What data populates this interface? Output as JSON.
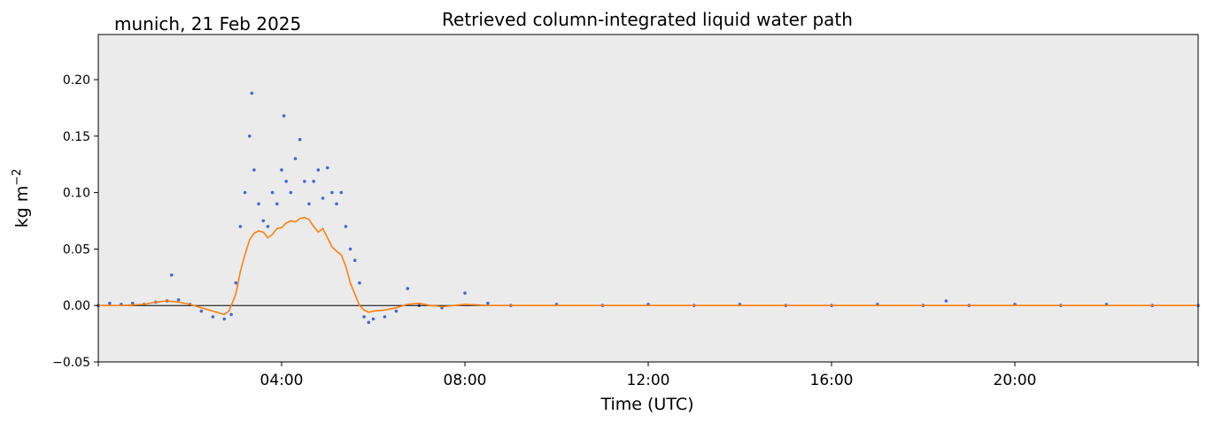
{
  "chart_data": {
    "type": "scatter",
    "location_date": "munich, 21 Feb 2025",
    "title": "Retrieved column-integrated liquid water path",
    "xlabel": "Time (UTC)",
    "ylabel": "kg m",
    "ylabel_superscript": "−2",
    "x_unit": "hours UTC",
    "xlim": [
      0,
      24
    ],
    "ylim": [
      -0.05,
      0.24
    ],
    "x_ticks": [
      {
        "value": 4,
        "label": "04:00"
      },
      {
        "value": 8,
        "label": "08:00"
      },
      {
        "value": 12,
        "label": "12:00"
      },
      {
        "value": 16,
        "label": "16:00"
      },
      {
        "value": 20,
        "label": "20:00"
      }
    ],
    "y_ticks": [
      {
        "value": -0.05,
        "label": "−0.05"
      },
      {
        "value": 0.0,
        "label": "0.00"
      },
      {
        "value": 0.05,
        "label": "0.05"
      },
      {
        "value": 0.1,
        "label": "0.10"
      },
      {
        "value": 0.15,
        "label": "0.15"
      },
      {
        "value": 0.2,
        "label": "0.20"
      }
    ],
    "grid": false,
    "background_color": "#ebebeb",
    "zero_line": 0,
    "series": [
      {
        "kind": "scatter",
        "color": "#4169e1",
        "x": [
          0.0,
          0.25,
          0.5,
          0.75,
          1.0,
          1.25,
          1.5,
          1.6,
          1.75,
          2.0,
          2.25,
          2.5,
          2.75,
          2.9,
          3.0,
          3.1,
          3.2,
          3.3,
          3.35,
          3.4,
          3.5,
          3.6,
          3.7,
          3.8,
          3.9,
          4.0,
          4.05,
          4.1,
          4.2,
          4.3,
          4.4,
          4.5,
          4.6,
          4.7,
          4.8,
          4.9,
          5.0,
          5.1,
          5.2,
          5.3,
          5.4,
          5.5,
          5.6,
          5.7,
          5.8,
          5.9,
          6.0,
          6.25,
          6.5,
          6.75,
          7.0,
          7.5,
          8.0,
          8.5,
          9.0,
          10.0,
          11.0,
          12.0,
          13.0,
          14.0,
          15.0,
          16.0,
          17.0,
          18.0,
          18.5,
          19.0,
          20.0,
          21.0,
          22.0,
          23.0,
          24.0
        ],
        "y": [
          0.0,
          0.002,
          0.001,
          0.002,
          0.001,
          0.003,
          0.004,
          0.027,
          0.005,
          0.001,
          -0.005,
          -0.01,
          -0.012,
          -0.008,
          0.02,
          0.07,
          0.1,
          0.15,
          0.188,
          0.12,
          0.09,
          0.075,
          0.07,
          0.1,
          0.09,
          0.12,
          0.168,
          0.11,
          0.1,
          0.13,
          0.147,
          0.11,
          0.09,
          0.11,
          0.12,
          0.095,
          0.122,
          0.1,
          0.09,
          0.1,
          0.07,
          0.05,
          0.04,
          0.02,
          -0.01,
          -0.015,
          -0.012,
          -0.01,
          -0.005,
          0.015,
          0.0,
          -0.002,
          0.011,
          0.002,
          0.0,
          0.001,
          0.0,
          0.001,
          0.0,
          0.001,
          0.0,
          0.0,
          0.001,
          0.0,
          0.004,
          0.0,
          0.001,
          0.0,
          0.001,
          0.0,
          0.0
        ]
      },
      {
        "kind": "line",
        "color": "#ff7f0e",
        "x": [
          0.0,
          0.5,
          1.0,
          1.25,
          1.5,
          1.75,
          2.0,
          2.25,
          2.5,
          2.75,
          2.85,
          3.0,
          3.1,
          3.2,
          3.3,
          3.4,
          3.5,
          3.6,
          3.7,
          3.8,
          3.9,
          4.0,
          4.1,
          4.2,
          4.3,
          4.4,
          4.5,
          4.6,
          4.7,
          4.8,
          4.9,
          5.0,
          5.1,
          5.2,
          5.3,
          5.4,
          5.5,
          5.6,
          5.7,
          5.8,
          5.9,
          6.0,
          6.25,
          6.5,
          6.75,
          7.0,
          7.25,
          7.5,
          7.75,
          8.0,
          8.5,
          9.0,
          12.0,
          16.0,
          20.0,
          24.0
        ],
        "y": [
          0.0,
          0.0,
          0.001,
          0.003,
          0.004,
          0.003,
          0.001,
          -0.002,
          -0.005,
          -0.008,
          -0.005,
          0.01,
          0.03,
          0.045,
          0.058,
          0.064,
          0.066,
          0.065,
          0.06,
          0.063,
          0.068,
          0.069,
          0.073,
          0.075,
          0.074,
          0.077,
          0.078,
          0.076,
          0.07,
          0.065,
          0.068,
          0.06,
          0.052,
          0.048,
          0.045,
          0.035,
          0.02,
          0.01,
          0.0,
          -0.004,
          -0.006,
          -0.005,
          -0.004,
          -0.002,
          0.001,
          0.002,
          0.0,
          -0.001,
          0.0,
          0.001,
          0.0,
          0.0,
          0.0,
          0.0,
          0.0,
          0.0
        ]
      }
    ]
  }
}
